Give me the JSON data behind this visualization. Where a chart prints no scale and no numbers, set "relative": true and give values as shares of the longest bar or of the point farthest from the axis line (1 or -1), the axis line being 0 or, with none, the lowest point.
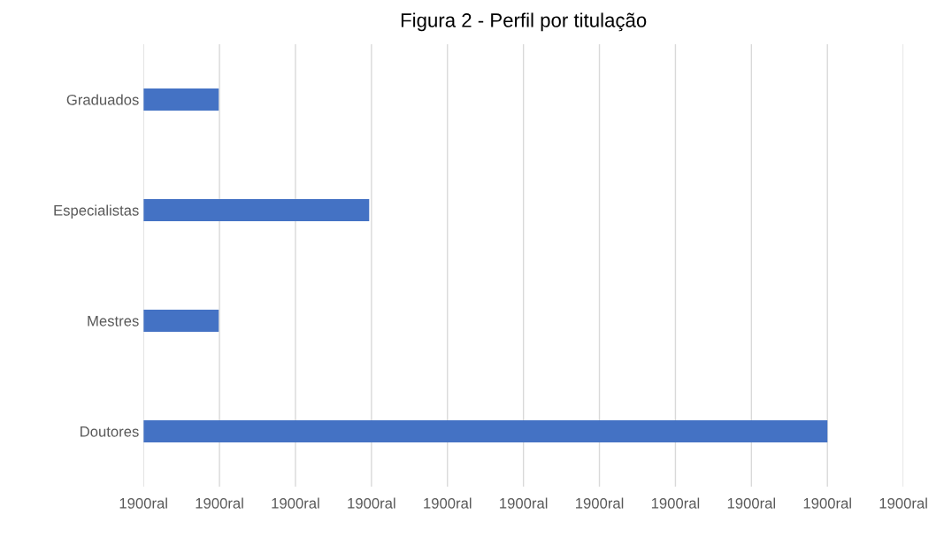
{
  "chart_data": {
    "type": "bar",
    "orientation": "horizontal",
    "title": "Figura 2 - Perfil por titulação",
    "categories": [
      "Graduados",
      "Especialistas",
      "Mestres",
      "Doutores"
    ],
    "values": [
      0.11,
      0.33,
      0.11,
      1
    ],
    "relative": true,
    "color": "#4472c4",
    "annotations": [
      "1900ral",
      "1900ral",
      "1900ral",
      "1900ral",
      "1900ral",
      "1900ral",
      "1900ral",
      "1900ral",
      "1900ral",
      "1900ral",
      "1900ral"
    ],
    "grid": "x"
  }
}
